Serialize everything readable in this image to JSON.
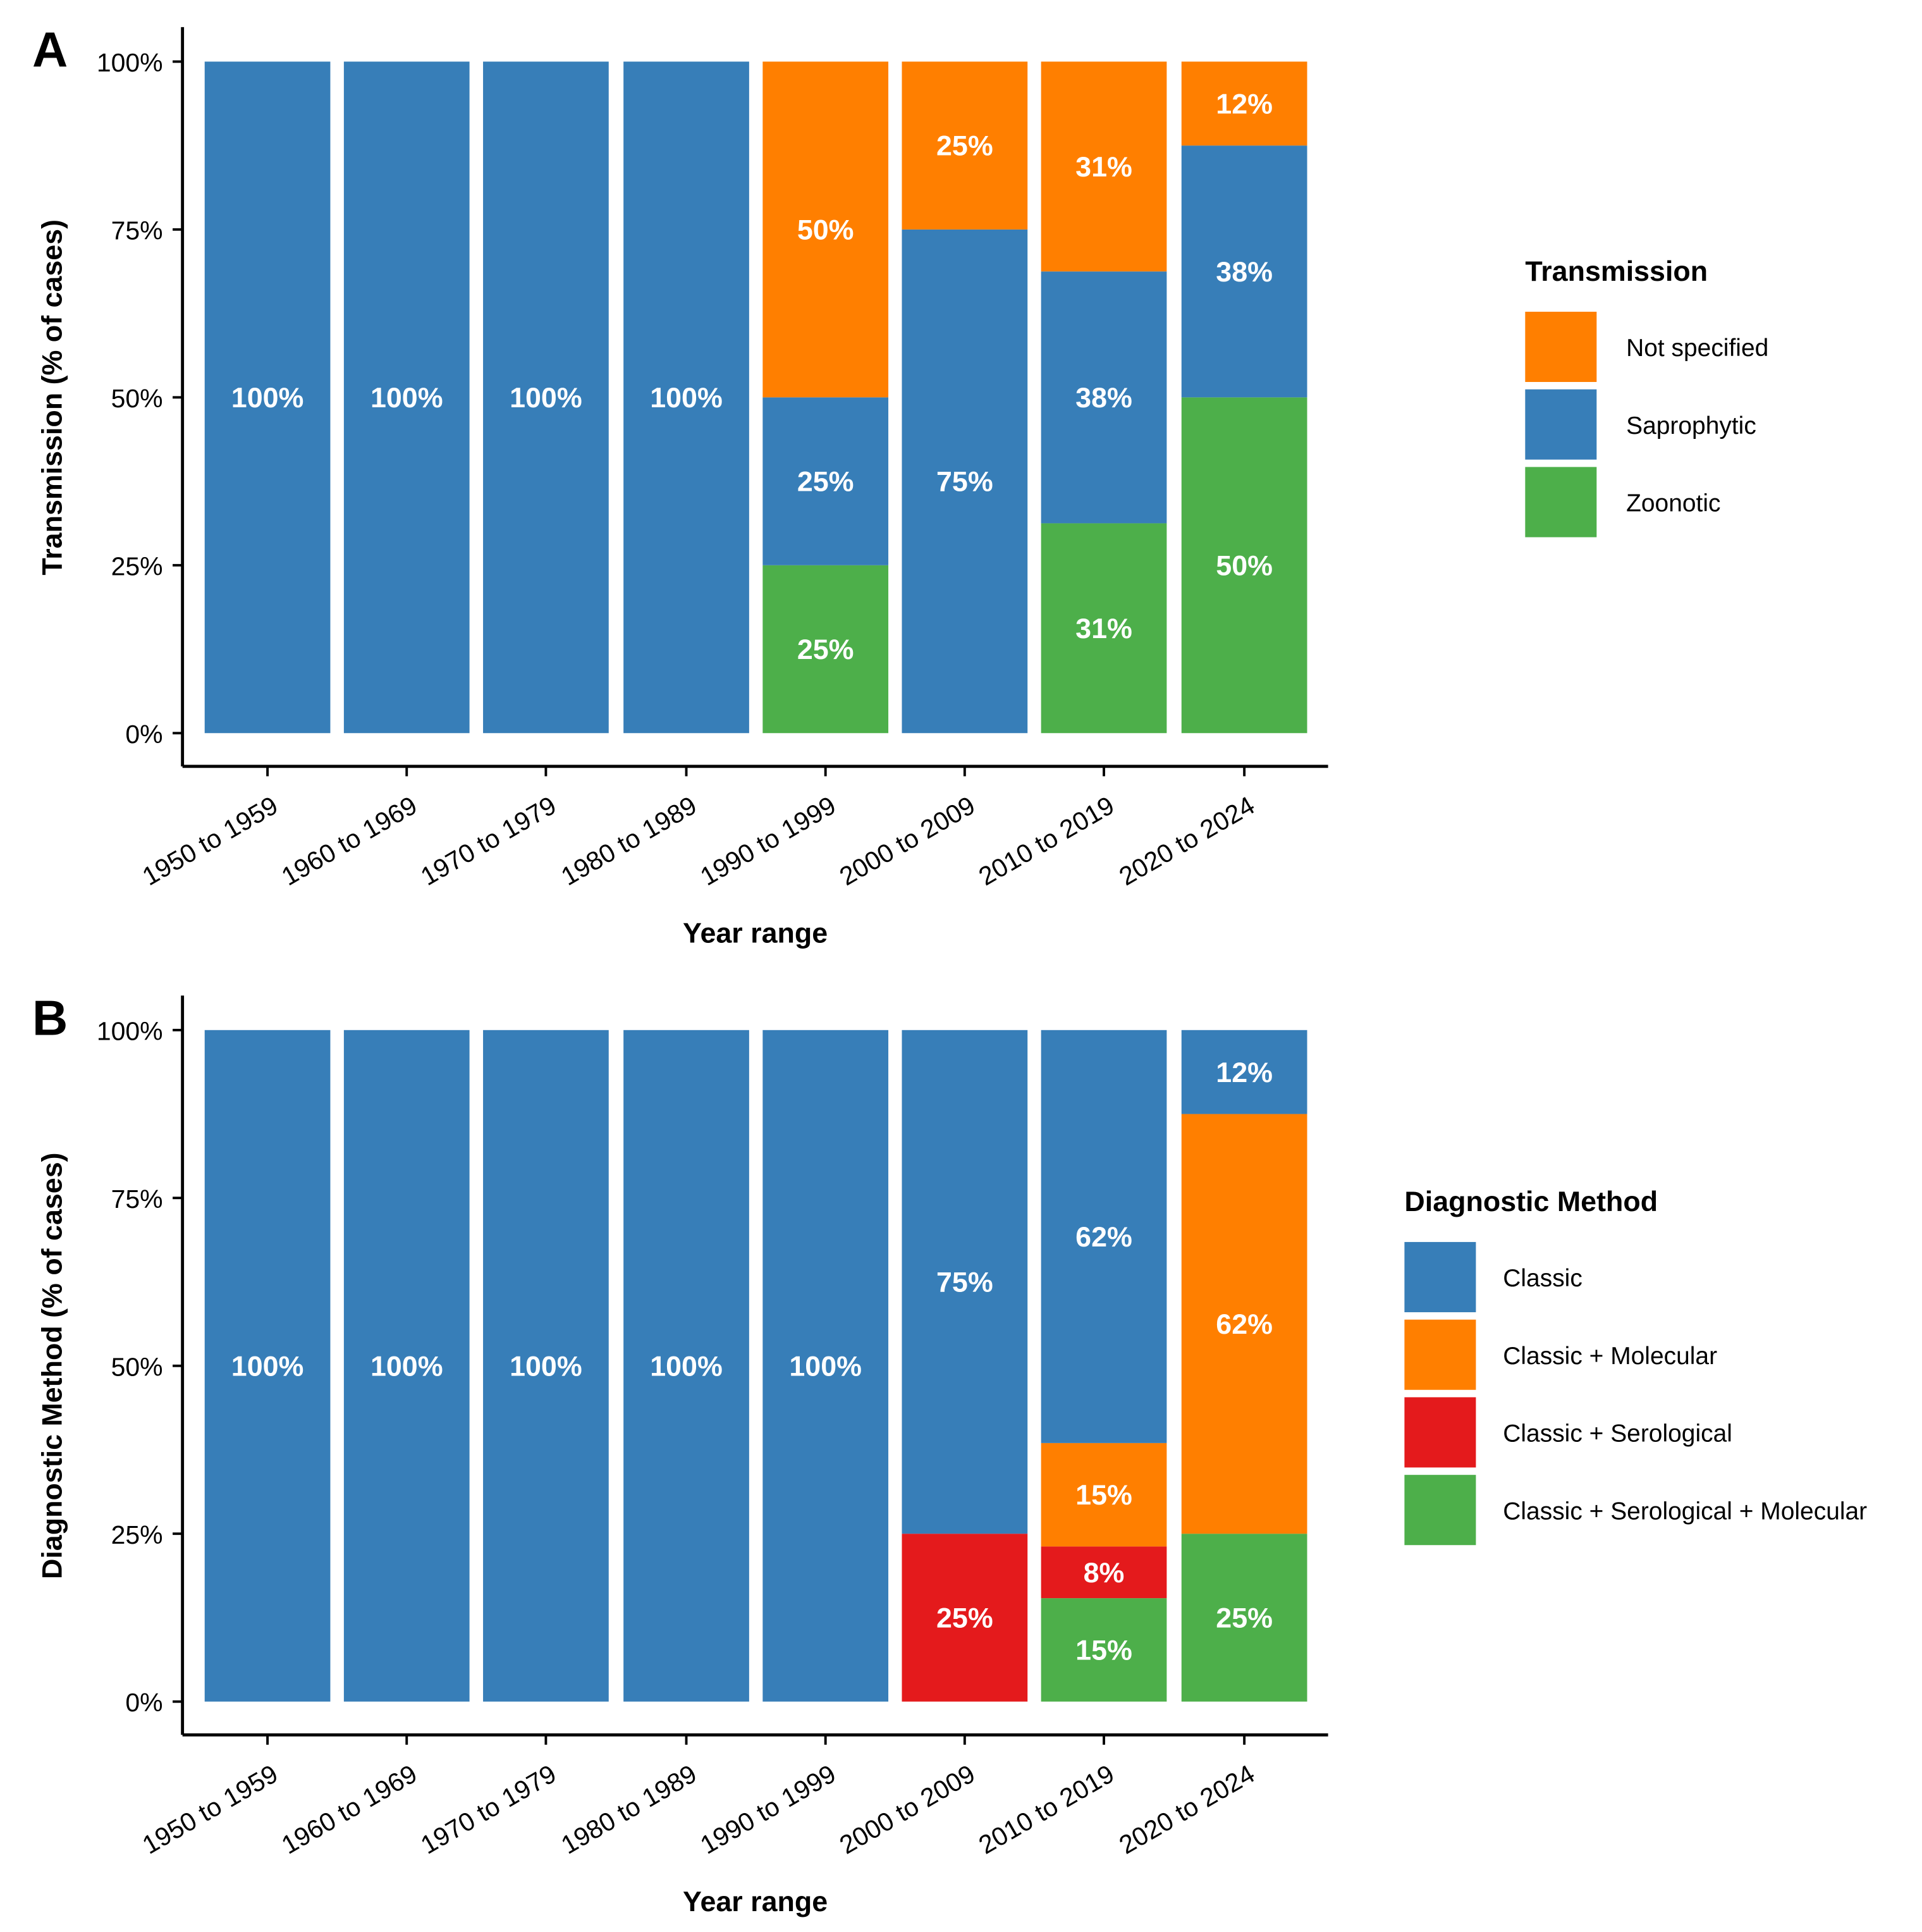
{
  "chart_data": [
    {
      "type": "bar",
      "stacked": true,
      "panel_label": "A",
      "xlabel": "Year range",
      "ylabel": "Transmission (% of cases)",
      "ylim": [
        0,
        100
      ],
      "yticks": [
        "0%",
        "25%",
        "50%",
        "75%",
        "100%"
      ],
      "categories": [
        "1950 to 1959",
        "1960 to 1969",
        "1970 to 1979",
        "1980 to 1989",
        "1990 to 1999",
        "2000 to 2009",
        "2010 to 2019",
        "2020 to 2024"
      ],
      "legend": {
        "title": "Transmission",
        "placement": "right"
      },
      "series": [
        {
          "name": "Zoonotic",
          "color": "#4DAF4A",
          "values": [
            0,
            0,
            0,
            0,
            25,
            0,
            31.25,
            50
          ],
          "labels": [
            "",
            "",
            "",
            "",
            "25%",
            "",
            "31%",
            "50%"
          ]
        },
        {
          "name": "Saprophytic",
          "color": "#377EB8",
          "values": [
            100,
            100,
            100,
            100,
            25,
            75,
            37.5,
            37.5
          ],
          "labels": [
            "100%",
            "100%",
            "100%",
            "100%",
            "25%",
            "75%",
            "38%",
            "38%"
          ]
        },
        {
          "name": "Not specified",
          "color": "#FF7F00",
          "values": [
            0,
            0,
            0,
            0,
            50,
            25,
            31.25,
            12.5
          ],
          "labels": [
            "",
            "",
            "",
            "",
            "50%",
            "25%",
            "31%",
            "12%"
          ]
        }
      ],
      "legend_order": [
        "Not specified",
        "Saprophytic",
        "Zoonotic"
      ]
    },
    {
      "type": "bar",
      "stacked": true,
      "panel_label": "B",
      "xlabel": "Year range",
      "ylabel": "Diagnostic Method (% of cases)",
      "ylim": [
        0,
        100
      ],
      "yticks": [
        "0%",
        "25%",
        "50%",
        "75%",
        "100%"
      ],
      "categories": [
        "1950 to 1959",
        "1960 to 1969",
        "1970 to 1979",
        "1980 to 1989",
        "1990 to 1999",
        "2000 to 2009",
        "2010 to 2019",
        "2020 to 2024"
      ],
      "legend": {
        "title": "Diagnostic Method",
        "placement": "right"
      },
      "series": [
        {
          "name": "Classic + Serological + Molecular",
          "color": "#4DAF4A",
          "values": [
            0,
            0,
            0,
            0,
            0,
            0,
            15.4,
            25
          ],
          "labels": [
            "",
            "",
            "",
            "",
            "",
            "",
            "15%",
            "25%"
          ]
        },
        {
          "name": "Classic + Serological",
          "color": "#E41A1C",
          "values": [
            0,
            0,
            0,
            0,
            0,
            25,
            7.7,
            0
          ],
          "labels": [
            "",
            "",
            "",
            "",
            "",
            "25%",
            "8%",
            ""
          ]
        },
        {
          "name": "Classic + Molecular",
          "color": "#FF7F00",
          "values": [
            0,
            0,
            0,
            0,
            0,
            0,
            15.4,
            62.5
          ],
          "labels": [
            "",
            "",
            "",
            "",
            "",
            "",
            "15%",
            "62%"
          ]
        },
        {
          "name": "Classic",
          "color": "#377EB8",
          "values": [
            100,
            100,
            100,
            100,
            100,
            75,
            61.5,
            12.5
          ],
          "labels": [
            "100%",
            "100%",
            "100%",
            "100%",
            "100%",
            "75%",
            "62%",
            "12%"
          ]
        }
      ],
      "legend_order": [
        "Classic",
        "Classic + Molecular",
        "Classic + Serological",
        "Classic + Serological + Molecular"
      ]
    }
  ]
}
